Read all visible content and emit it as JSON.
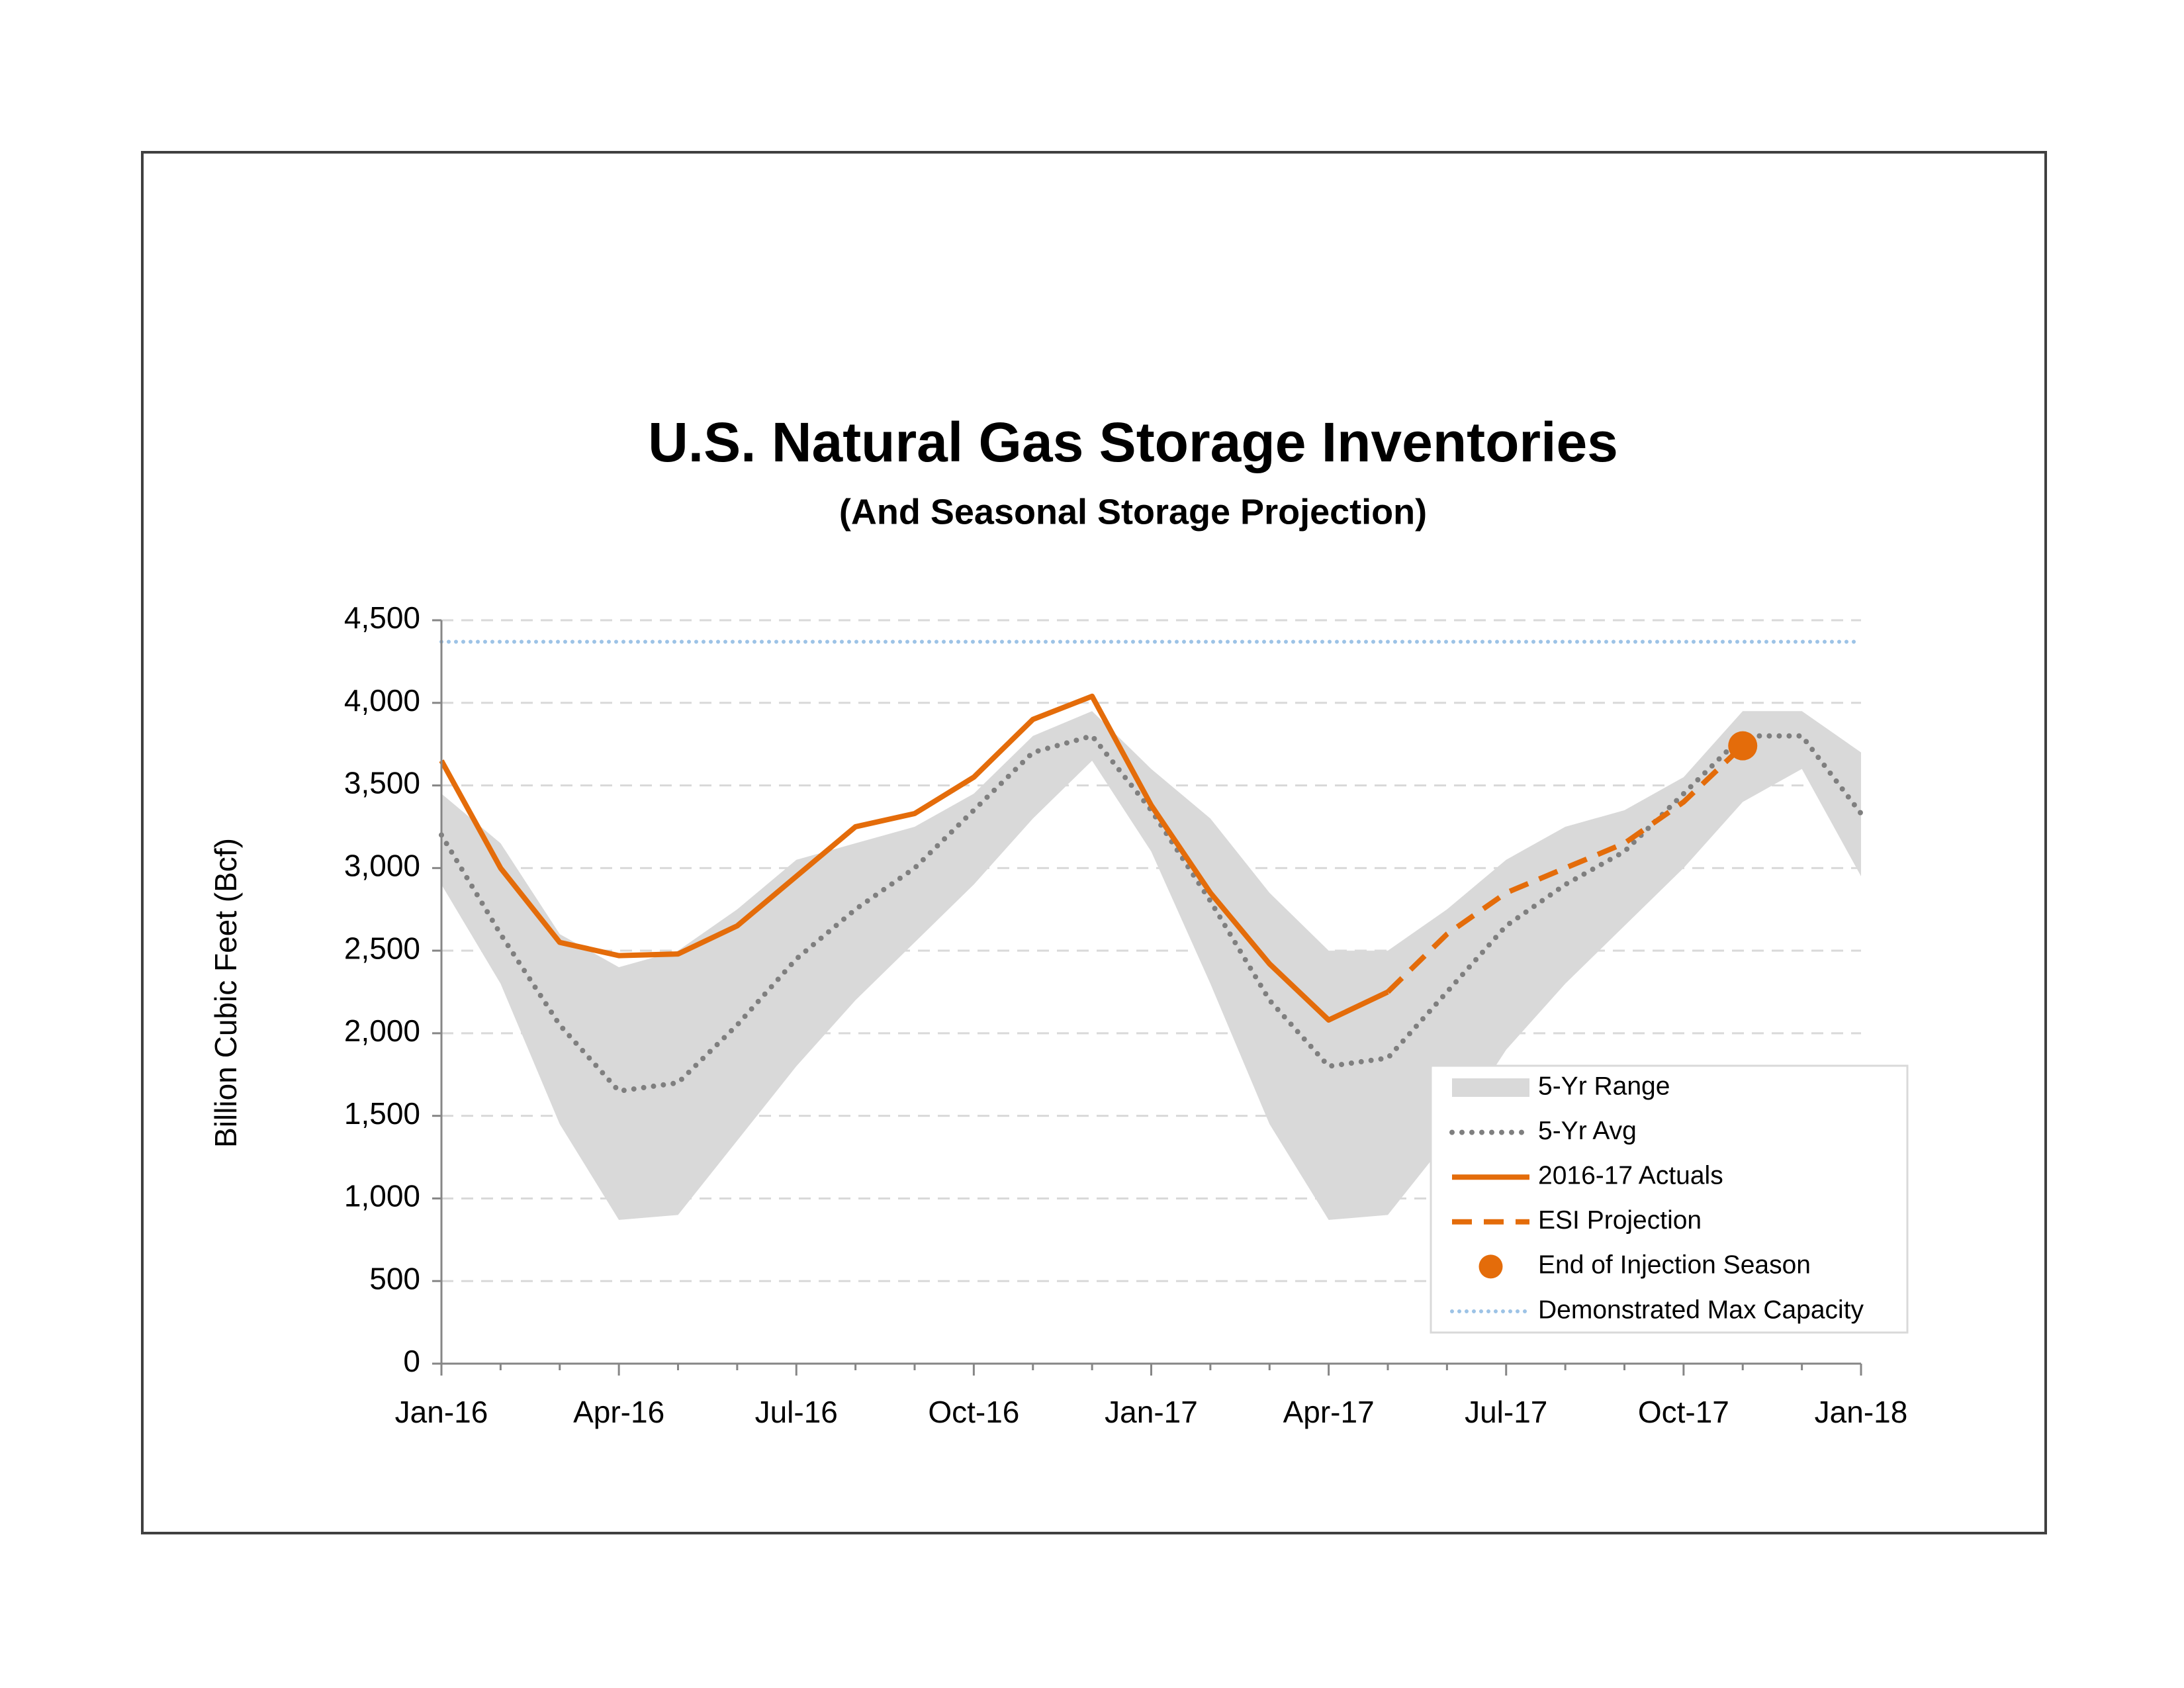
{
  "chart_data": {
    "type": "line",
    "title": "U.S. Natural Gas Storage Inventories",
    "subtitle": "(And Seasonal Storage Projection)",
    "y_label": "Billion Cubic Feet (Bcf)",
    "categories": [
      "Jan-16",
      null,
      null,
      "Apr-16",
      null,
      null,
      "Jul-16",
      null,
      null,
      "Oct-16",
      null,
      null,
      "Jan-17",
      null,
      null,
      "Apr-17",
      null,
      null,
      "Jul-17",
      null,
      null,
      "Oct-17",
      null,
      null,
      "Jan-18"
    ],
    "ylim": [
      0,
      4500
    ],
    "yticks": [
      0,
      500,
      {
        "value": 1000,
        "label": "1,000"
      },
      {
        "value": 1500,
        "label": "1,500"
      },
      {
        "value": 2000,
        "label": "2,000"
      },
      {
        "value": 2500,
        "label": "2,500"
      },
      {
        "value": 3000,
        "label": "3,000"
      },
      {
        "value": 3500,
        "label": "3,500"
      },
      {
        "value": 4000,
        "label": "4,000"
      },
      {
        "value": 4500,
        "label": "4,500"
      }
    ],
    "grid": true,
    "legend": "lower-right",
    "series": [
      {
        "name": "5-Yr Range",
        "kind": "range",
        "color": "#d9d9d9",
        "upper": [
          3450,
          3150,
          2600,
          2400,
          2500,
          2750,
          3050,
          3150,
          3250,
          3450,
          3800,
          3950,
          3600,
          3300,
          2850,
          2500,
          2500,
          2750,
          3050,
          3250,
          3350,
          3550,
          3950,
          3950,
          3700
        ],
        "lower": [
          2900,
          2300,
          1450,
          870,
          900,
          1350,
          1800,
          2200,
          2550,
          2900,
          3300,
          3650,
          3100,
          2300,
          1450,
          870,
          900,
          1350,
          1900,
          2300,
          2650,
          3000,
          3400,
          3600,
          2950
        ]
      },
      {
        "name": "5-Yr Avg",
        "kind": "dotted",
        "color": "#7f7f7f",
        "values": [
          3200,
          2600,
          2050,
          1650,
          1700,
          2050,
          2450,
          2750,
          3000,
          3350,
          3700,
          3800,
          3350,
          2800,
          2200,
          1800,
          1850,
          2250,
          2650,
          2900,
          3100,
          3450,
          3800,
          3800,
          3330
        ]
      },
      {
        "name": "2016-17 Actuals",
        "kind": "solid",
        "color": "#e46c0a",
        "values": [
          3650,
          3000,
          2550,
          2470,
          2480,
          2650,
          2950,
          3250,
          3330,
          3550,
          3900,
          4040,
          3380,
          2850,
          2420,
          2080,
          2250,
          null,
          null,
          null,
          null,
          null,
          null,
          null,
          null
        ]
      },
      {
        "name": "ESI Projection",
        "kind": "dashed",
        "color": "#e46c0a",
        "values": [
          null,
          null,
          null,
          null,
          null,
          null,
          null,
          null,
          null,
          null,
          null,
          null,
          null,
          null,
          null,
          null,
          2250,
          2600,
          2850,
          3000,
          3150,
          3400,
          3740,
          null,
          null
        ]
      },
      {
        "name": "End of Injection Season",
        "kind": "marker",
        "color": "#e46c0a",
        "values": [
          null,
          null,
          null,
          null,
          null,
          null,
          null,
          null,
          null,
          null,
          null,
          null,
          null,
          null,
          null,
          null,
          null,
          null,
          null,
          null,
          null,
          null,
          3740,
          null,
          null
        ]
      },
      {
        "name": "Demonstrated Max Capacity",
        "kind": "hline",
        "color": "#9dc3e6",
        "value": 4370
      }
    ]
  }
}
